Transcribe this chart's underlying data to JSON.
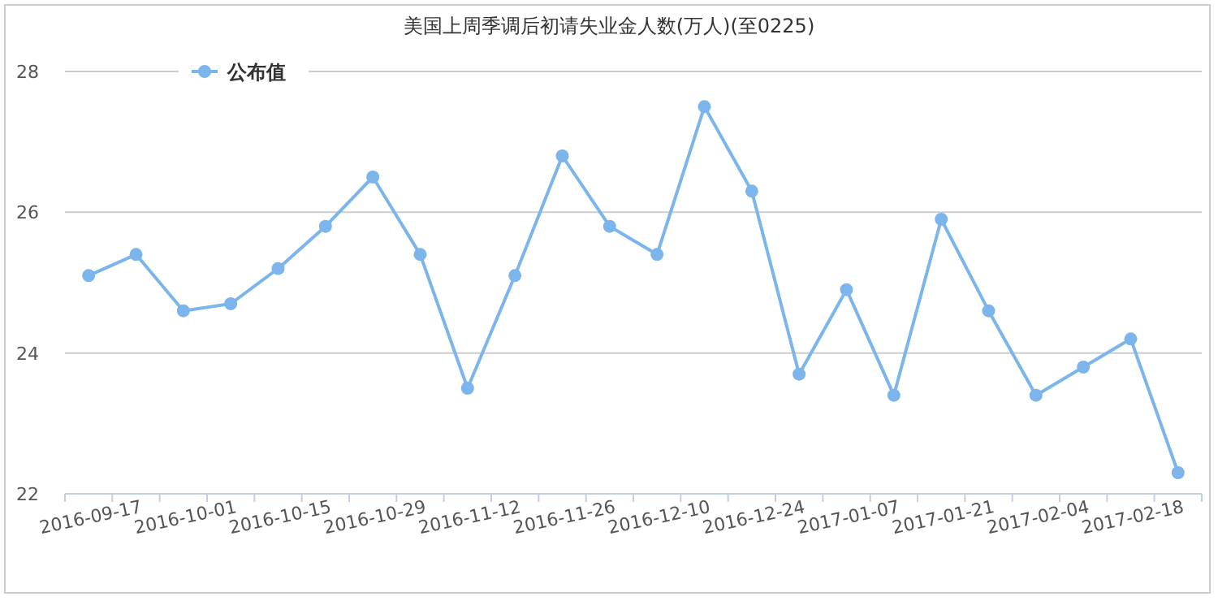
{
  "chart_data": {
    "type": "line",
    "title": "美国上周季调后初请失业金人数(万人)(至0225)",
    "categories": [
      "2016-09-17",
      null,
      "2016-10-01",
      null,
      "2016-10-15",
      null,
      "2016-10-29",
      null,
      "2016-11-12",
      null,
      "2016-11-26",
      null,
      "2016-12-10",
      null,
      "2016-12-24",
      null,
      "2017-01-07",
      null,
      "2017-01-21",
      null,
      "2017-02-04",
      null,
      "2017-02-18",
      null
    ],
    "series": [
      {
        "name": "公布值",
        "color": "#7cb5ec",
        "values": [
          25.1,
          25.4,
          24.6,
          24.7,
          25.2,
          25.8,
          26.5,
          25.4,
          23.5,
          25.1,
          26.8,
          25.8,
          25.4,
          27.5,
          26.3,
          23.7,
          24.9,
          23.4,
          25.9,
          24.6,
          23.4,
          23.8,
          24.2,
          22.3
        ]
      }
    ],
    "ylim": [
      22,
      28
    ],
    "yticks": [
      22,
      24,
      26,
      28
    ],
    "grid": "y",
    "legend": "top left",
    "marker": "circle",
    "line_style": "solid"
  }
}
